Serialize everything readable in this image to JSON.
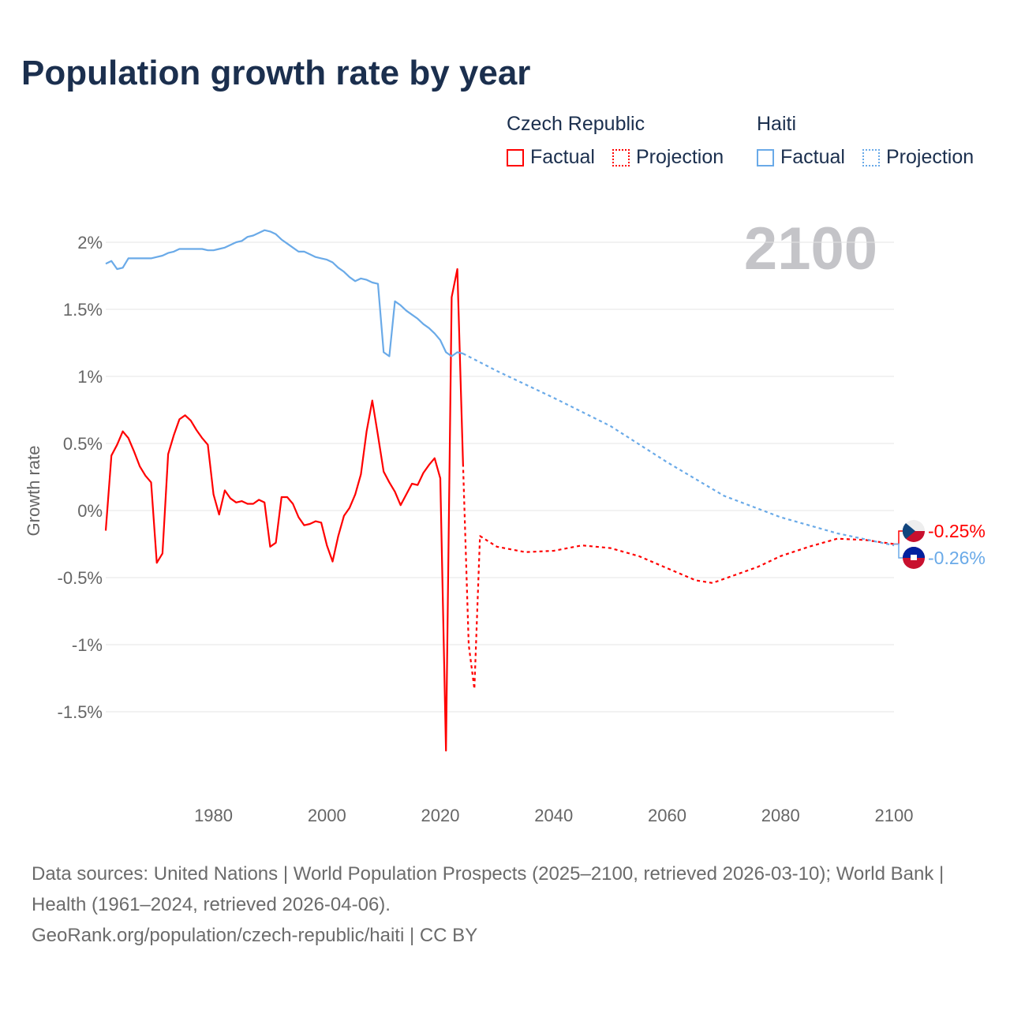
{
  "title": "Population growth rate by year",
  "legend": {
    "groups": [
      {
        "name": "Czech Republic",
        "factual": "Factual",
        "projection": "Projection",
        "color": "#ff0000"
      },
      {
        "name": "Haiti",
        "factual": "Factual",
        "projection": "Projection",
        "color": "#6aaae8"
      }
    ]
  },
  "watermark_year": "2100",
  "chart_data": {
    "type": "line",
    "title": "Population growth rate by year",
    "xlabel": "",
    "ylabel": "Growth rate",
    "xlim": [
      1961,
      2100
    ],
    "ylim": [
      -2.0,
      2.25
    ],
    "x_ticks": [
      1980,
      2000,
      2020,
      2040,
      2060,
      2080,
      2100
    ],
    "x_tick_labels": [
      "1980",
      "2000",
      "2020",
      "2040",
      "2060",
      "2080",
      "2100"
    ],
    "y_ticks": [
      2,
      1.5,
      1,
      0.5,
      0,
      -0.5,
      -1,
      -1.5
    ],
    "y_tick_labels": [
      "2%",
      "1.5%",
      "1%",
      "0.5%",
      "0%",
      "-0.5%",
      "-1%",
      "-1.5%"
    ],
    "grid": true,
    "legend_position": "top-right",
    "series": [
      {
        "name": "Czech Republic",
        "kind": "Factual",
        "color": "#ff0000",
        "start_year": 1961,
        "values": [
          -0.15,
          0.41,
          0.49,
          0.59,
          0.54,
          0.44,
          0.33,
          0.26,
          0.21,
          -0.39,
          -0.32,
          0.42,
          0.56,
          0.68,
          0.71,
          0.67,
          0.6,
          0.54,
          0.49,
          0.12,
          -0.03,
          0.15,
          0.09,
          0.06,
          0.07,
          0.05,
          0.05,
          0.08,
          0.06,
          -0.27,
          -0.24,
          0.1,
          0.1,
          0.05,
          -0.05,
          -0.11,
          -0.1,
          -0.08,
          -0.09,
          -0.26,
          -0.38,
          -0.19,
          -0.04,
          0.02,
          0.12,
          0.27,
          0.59,
          0.82,
          0.56,
          0.29,
          0.21,
          0.14,
          0.04,
          0.12,
          0.2,
          0.19,
          0.28,
          0.34,
          0.39,
          0.24,
          -1.79,
          1.59,
          1.8,
          0.35
        ]
      },
      {
        "name": "Czech Republic",
        "kind": "Projection",
        "color": "#ff0000",
        "x": [
          2024,
          2025,
          2026,
          2027,
          2030,
          2035,
          2040,
          2045,
          2050,
          2055,
          2060,
          2065,
          2068,
          2072,
          2076,
          2080,
          2085,
          2090,
          2095,
          2100
        ],
        "values": [
          0.35,
          -1.0,
          -1.33,
          -0.19,
          -0.27,
          -0.31,
          -0.3,
          -0.26,
          -0.28,
          -0.34,
          -0.43,
          -0.52,
          -0.54,
          -0.48,
          -0.42,
          -0.34,
          -0.27,
          -0.21,
          -0.22,
          -0.25
        ]
      },
      {
        "name": "Haiti",
        "kind": "Factual",
        "color": "#6aaae8",
        "start_year": 1961,
        "values": [
          1.84,
          1.86,
          1.8,
          1.81,
          1.88,
          1.88,
          1.88,
          1.88,
          1.88,
          1.89,
          1.9,
          1.92,
          1.93,
          1.95,
          1.95,
          1.95,
          1.95,
          1.95,
          1.94,
          1.94,
          1.95,
          1.96,
          1.98,
          2.0,
          2.01,
          2.04,
          2.05,
          2.07,
          2.09,
          2.08,
          2.06,
          2.02,
          1.99,
          1.96,
          1.93,
          1.93,
          1.91,
          1.89,
          1.88,
          1.87,
          1.85,
          1.81,
          1.78,
          1.74,
          1.71,
          1.73,
          1.72,
          1.7,
          1.69,
          1.18,
          1.15,
          1.56,
          1.53,
          1.49,
          1.46,
          1.43,
          1.39,
          1.36,
          1.32,
          1.27,
          1.18,
          1.15,
          1.18,
          1.17
        ]
      },
      {
        "name": "Haiti",
        "kind": "Projection",
        "color": "#6aaae8",
        "x": [
          2024,
          2030,
          2040,
          2050,
          2060,
          2070,
          2080,
          2090,
          2100
        ],
        "values": [
          1.17,
          1.04,
          0.84,
          0.63,
          0.36,
          0.11,
          -0.05,
          -0.17,
          -0.26
        ]
      }
    ],
    "end_labels": [
      {
        "country": "Czech Republic",
        "label": "-0.25%",
        "color": "#ff0000"
      },
      {
        "country": "Haiti",
        "label": "-0.26%",
        "color": "#6aaae8"
      }
    ]
  },
  "footer": {
    "sources": "Data sources: United Nations | World Population Prospects (2025–2100, retrieved 2026-03-10); World Bank | Health (1961–2024, retrieved 2026-04-06).",
    "credit": "GeoRank.org/population/czech-republic/haiti | CC BY"
  }
}
